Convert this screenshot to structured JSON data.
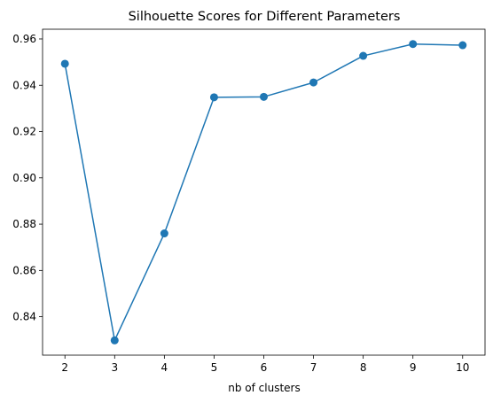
{
  "chart_data": {
    "type": "line",
    "title": "Silhouette Scores for Different Parameters",
    "xlabel": "nb of clusters",
    "ylabel": "",
    "x": [
      2,
      3,
      4,
      5,
      6,
      7,
      8,
      9,
      10
    ],
    "series": [
      {
        "values": [
          0.9493,
          0.8298,
          0.876,
          0.9348,
          0.935,
          0.9412,
          0.9527,
          0.9578,
          0.9573
        ],
        "color": "#1f77b4",
        "marker": "circle"
      }
    ],
    "xlim": [
      1.55,
      10.45
    ],
    "ylim": [
      0.8234,
      0.9642
    ],
    "xticks": [
      2,
      3,
      4,
      5,
      6,
      7,
      8,
      9,
      10
    ],
    "yticks": [
      0.84,
      0.86,
      0.88,
      0.9,
      0.92,
      0.94,
      0.96
    ],
    "ytick_labels": [
      "0.84",
      "0.86",
      "0.88",
      "0.90",
      "0.92",
      "0.94",
      "0.96"
    ],
    "grid": false,
    "legend": false
  }
}
